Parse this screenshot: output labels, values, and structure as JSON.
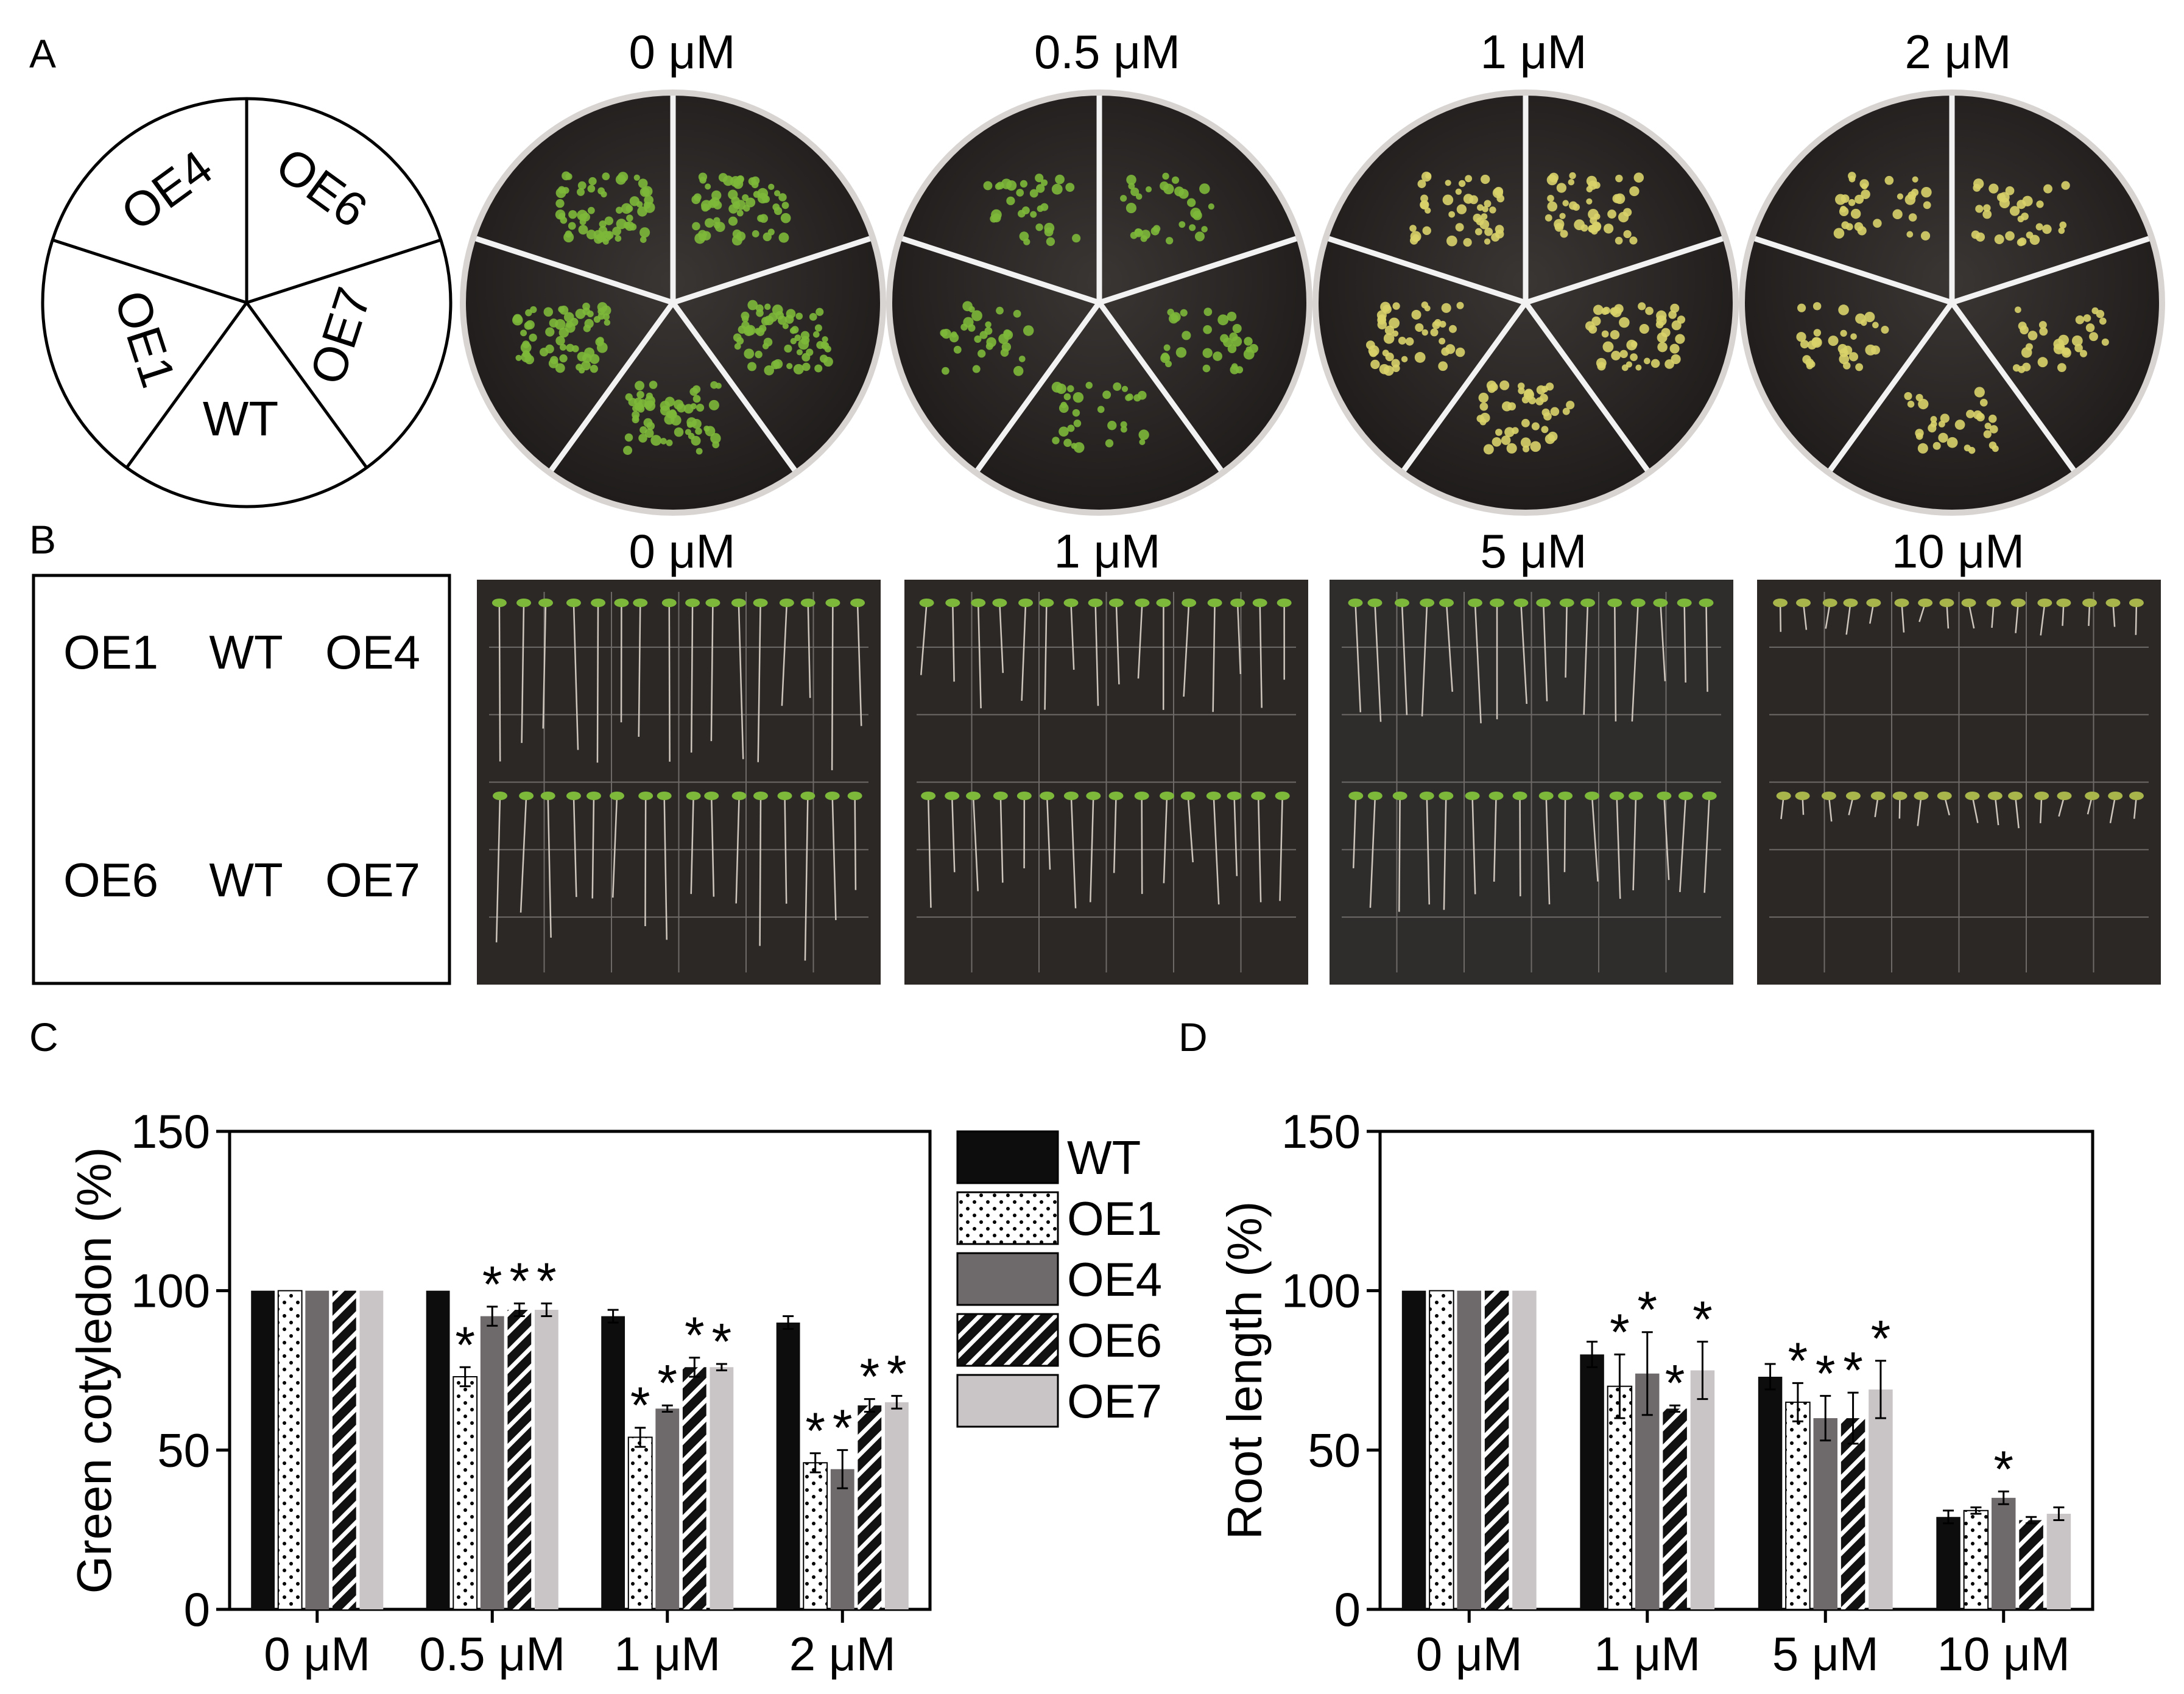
{
  "panels": {
    "A": {
      "label": "A",
      "key_sectors": [
        "OE4",
        "OE6",
        "OE7",
        "WT",
        "OE1"
      ],
      "concentrations": [
        "0 μM",
        "0.5 μM",
        "1 μM",
        "2 μM"
      ]
    },
    "B": {
      "label": "B",
      "key_rows": [
        [
          "OE1",
          "WT",
          "OE4"
        ],
        [
          "OE6",
          "WT",
          "OE7"
        ]
      ],
      "concentrations": [
        "0 μM",
        "1 μM",
        "5 μM",
        "10 μM"
      ]
    },
    "C": {
      "label": "C"
    },
    "D": {
      "label": "D"
    }
  },
  "colors": {
    "WT": "#0d0d0d",
    "OE1": "#ffffff",
    "OE4": "#6e6a6c",
    "OE6": "#111111",
    "OE7": "#c9c5c6",
    "plate_bg": "#2b2826",
    "seedling_green": "#7db83a",
    "seedling_yellow": "#d9d36a"
  },
  "chart_data": [
    {
      "type": "bar",
      "panel": "C",
      "ylabel": "Green cotyledon (%)",
      "xlabel": "",
      "ylim": [
        0,
        150
      ],
      "yticks": [
        0,
        50,
        100,
        150
      ],
      "categories": [
        "0 μM",
        "0.5 μM",
        "1 μM",
        "2 μM"
      ],
      "legend": [
        "WT",
        "OE1",
        "OE4",
        "OE6",
        "OE7"
      ],
      "legend_position": "right",
      "series": [
        {
          "name": "WT",
          "values": [
            100,
            100,
            92,
            90
          ],
          "errors": [
            0,
            0,
            2,
            2
          ],
          "sig": [
            false,
            false,
            false,
            false
          ]
        },
        {
          "name": "OE1",
          "values": [
            100,
            73,
            54,
            46
          ],
          "errors": [
            0,
            3,
            3,
            3
          ],
          "sig": [
            false,
            true,
            true,
            true
          ]
        },
        {
          "name": "OE4",
          "values": [
            100,
            92,
            63,
            44
          ],
          "errors": [
            0,
            3,
            1,
            6
          ],
          "sig": [
            false,
            true,
            true,
            true
          ]
        },
        {
          "name": "OE6",
          "values": [
            100,
            94,
            76,
            64
          ],
          "errors": [
            0,
            2,
            3,
            2
          ],
          "sig": [
            false,
            true,
            true,
            true
          ]
        },
        {
          "name": "OE7",
          "values": [
            100,
            94,
            76,
            65
          ],
          "errors": [
            0,
            2,
            1,
            2
          ],
          "sig": [
            false,
            true,
            true,
            true
          ]
        }
      ],
      "sig_mark": "*"
    },
    {
      "type": "bar",
      "panel": "D",
      "ylabel": "Root length (%)",
      "xlabel": "",
      "ylim": [
        0,
        150
      ],
      "yticks": [
        0,
        50,
        100,
        150
      ],
      "categories": [
        "0 μM",
        "1 μM",
        "5 μM",
        "10 μM"
      ],
      "legend": [],
      "series": [
        {
          "name": "WT",
          "values": [
            100,
            80,
            73,
            29
          ],
          "errors": [
            0,
            4,
            4,
            2
          ],
          "sig": [
            false,
            false,
            false,
            false
          ]
        },
        {
          "name": "OE1",
          "values": [
            100,
            70,
            65,
            31
          ],
          "errors": [
            0,
            10,
            6,
            1
          ],
          "sig": [
            false,
            true,
            true,
            false
          ]
        },
        {
          "name": "OE4",
          "values": [
            100,
            74,
            60,
            35
          ],
          "errors": [
            0,
            13,
            7,
            2
          ],
          "sig": [
            false,
            true,
            true,
            true
          ]
        },
        {
          "name": "OE6",
          "values": [
            100,
            63,
            60,
            28
          ],
          "errors": [
            0,
            1,
            8,
            1
          ],
          "sig": [
            false,
            true,
            true,
            false
          ]
        },
        {
          "name": "OE7",
          "values": [
            100,
            75,
            69,
            30
          ],
          "errors": [
            0,
            9,
            9,
            2
          ],
          "sig": [
            false,
            true,
            true,
            false
          ]
        }
      ],
      "sig_mark": "*"
    }
  ]
}
